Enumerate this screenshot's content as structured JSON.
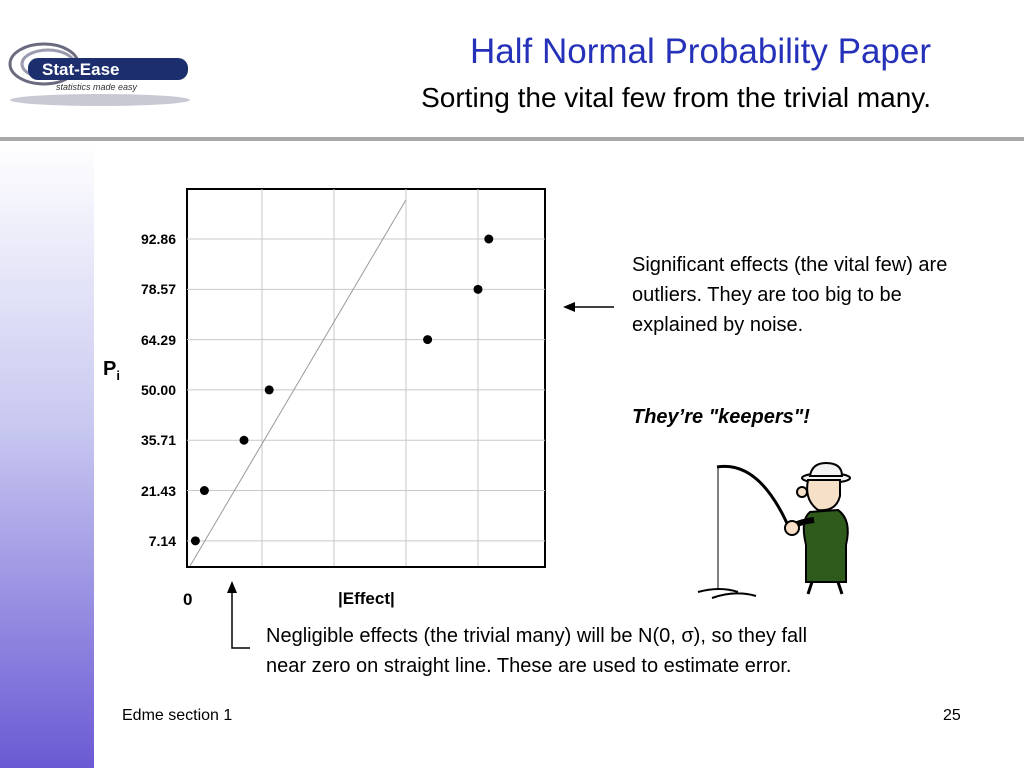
{
  "header": {
    "title": "Half Normal Probability Paper",
    "subtitle": "Sorting the vital few from the trivial many."
  },
  "logo": {
    "brand": "Stat-Ease",
    "tagline": "statistics made easy"
  },
  "chart_data": {
    "type": "scatter",
    "ylabel_main": "P",
    "ylabel_sub": "i",
    "xlabel": "|Effect|",
    "x_tick_labels": [
      "0"
    ],
    "y_tick_labels": [
      "7.14",
      "21.43",
      "35.71",
      "50.00",
      "64.29",
      "78.57",
      "92.86"
    ],
    "y_tick_values": [
      7.14,
      21.43,
      35.71,
      50.0,
      64.29,
      78.57,
      92.86
    ],
    "xlim": [
      0,
      10
    ],
    "grid": true,
    "series": [
      {
        "x": [
          0.15,
          0.4,
          1.5,
          2.2,
          6.6,
          8.0,
          8.3
        ],
        "y": [
          7.14,
          21.43,
          35.71,
          50.0,
          64.29,
          78.57,
          92.86
        ]
      }
    ],
    "reference_line": {
      "x": [
        0,
        6.0
      ],
      "y": [
        0,
        104
      ]
    }
  },
  "annotations": {
    "significant": "Significant effects (the vital few) are outliers.  They are too big to be explained by noise.",
    "keepers": "They’re \"keepers\"!",
    "negligible_line1": "Negligible effects (the trivial many) will be N(0, σ), so they fall",
    "negligible_line2": "near zero on straight line.  These are used to estimate error."
  },
  "footer": {
    "left": "Edme section 1",
    "page": "25"
  },
  "colors": {
    "title": "#2431b8",
    "sidebar_bottom": "#6a5ad4",
    "fisherman_vest": "#2e5a1c"
  }
}
